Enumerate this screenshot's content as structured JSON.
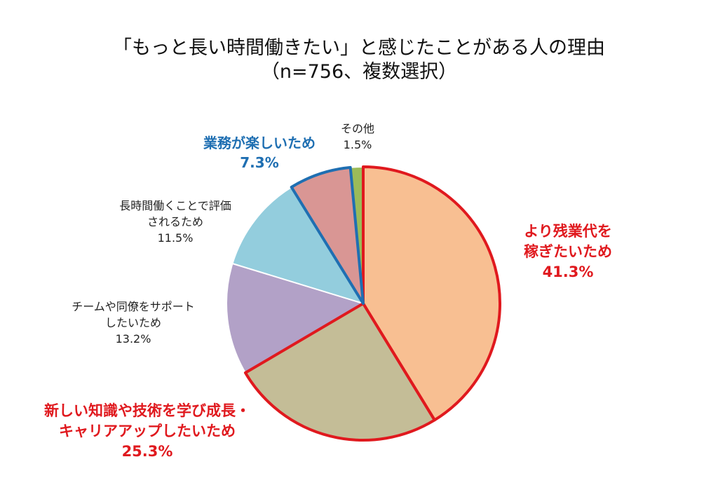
{
  "chart_data": {
    "type": "pie",
    "title_line1": "「もっと長い時間働きたい」と感じたことがある人の理由",
    "title_line2": "（n=756、複数選択）",
    "slices": [
      {
        "key": "overtime",
        "line1": "より残業代を",
        "line2": "稼ぎたいため",
        "value": 41.3,
        "value_label": "41.3%",
        "color": "#f8bf92",
        "outline": "#e0191e"
      },
      {
        "key": "skills",
        "line1": "新しい知識や技術を学び成長・",
        "line2": "キャリアアップしたいため",
        "value": 25.3,
        "value_label": "25.3%",
        "color": "#c4bd97",
        "outline": "#e0191e"
      },
      {
        "key": "support",
        "line1": "チームや同僚をサポート",
        "line2": "したいため",
        "value": 13.2,
        "value_label": "13.2%",
        "color": "#b2a1c7",
        "outline": "#ffffff"
      },
      {
        "key": "evaluation",
        "line1": "長時間働くことで評価",
        "line2": "されるため",
        "value": 11.5,
        "value_label": "11.5%",
        "color": "#93cddd",
        "outline": "#ffffff"
      },
      {
        "key": "enjoy",
        "line1": "業務が楽しいため",
        "line2": "",
        "value": 7.3,
        "value_label": "7.3%",
        "color": "#d99694",
        "outline": "#1f6fb2"
      },
      {
        "key": "other",
        "line1": "その他",
        "line2": "",
        "value": 1.5,
        "value_label": "1.5%",
        "color": "#9bbb59",
        "outline": "#ffffff"
      }
    ]
  }
}
